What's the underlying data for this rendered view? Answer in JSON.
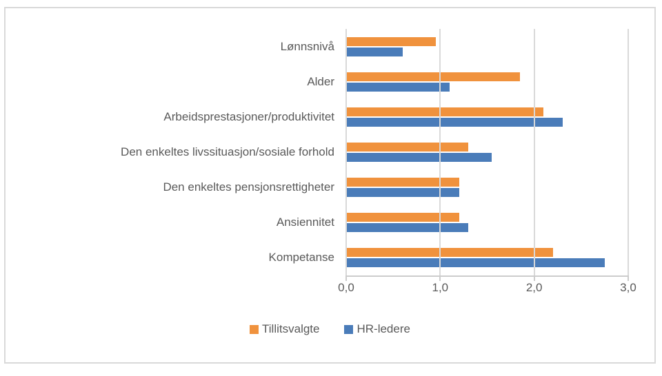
{
  "chart_data": {
    "type": "bar",
    "orientation": "horizontal",
    "title": "",
    "xlabel": "",
    "ylabel": "",
    "xlim": [
      0,
      3
    ],
    "grid": "vertical",
    "legend_position": "bottom",
    "categories": [
      "Lønnsnivå",
      "Alder",
      "Arbeidsprestasjoner/produktivitet",
      "Den enkeltes livssituasjon/sosiale forhold",
      "Den enkeltes pensjonsrettigheter",
      "Ansiennitet",
      "Kompetanse"
    ],
    "series": [
      {
        "name": "Tillitsvalgte",
        "color": "#f0923d",
        "values": [
          0.95,
          1.85,
          2.1,
          1.3,
          1.2,
          1.2,
          2.2
        ]
      },
      {
        "name": "HR-ledere",
        "color": "#4a7cb9",
        "values": [
          0.6,
          1.1,
          2.3,
          1.55,
          1.2,
          1.3,
          2.75
        ]
      }
    ],
    "xticks": [
      {
        "value": 0,
        "label": "0,0"
      },
      {
        "value": 1,
        "label": "1,0"
      },
      {
        "value": 2,
        "label": "2,0"
      },
      {
        "value": 3,
        "label": "3,0"
      }
    ]
  },
  "colors": {
    "frame_border": "#d9d9d9",
    "gridline": "#d9d9d9",
    "axis_line": "#cccccc",
    "text": "#595959",
    "background": "#ffffff"
  }
}
